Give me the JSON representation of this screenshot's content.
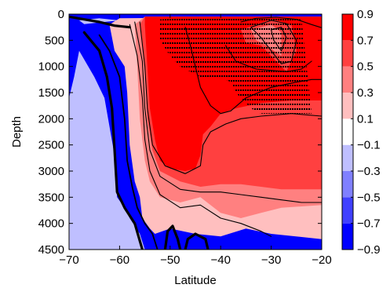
{
  "chart_data": {
    "type": "heatmap",
    "title": "",
    "xlabel": "Latitude",
    "ylabel": "Depth",
    "xlim": [
      -70,
      -20
    ],
    "ylim": [
      0,
      4500
    ],
    "y_inverted": true,
    "x_ticks": [
      -70,
      -60,
      -50,
      -40,
      -30,
      -20
    ],
    "x_tick_labels": [
      "−70",
      "−60",
      "−50",
      "−40",
      "−30",
      "−20"
    ],
    "y_ticks": [
      0,
      500,
      1000,
      1500,
      2000,
      2500,
      3000,
      3500,
      4000,
      4500
    ],
    "y_tick_labels": [
      "0",
      "500",
      "1000",
      "1500",
      "2000",
      "2500",
      "3000",
      "3500",
      "4000",
      "4500"
    ],
    "colorbar": {
      "levels": [
        -0.9,
        -0.7,
        -0.5,
        -0.3,
        -0.1,
        0.1,
        0.3,
        0.5,
        0.7,
        0.9
      ],
      "tick_labels": [
        "−0.9",
        "−0.7",
        "−0.5",
        "−0.3",
        "−0.1",
        "0.1",
        "0.3",
        "0.5",
        "0.7",
        "0.9"
      ],
      "colors": [
        "#0000ff",
        "#4040ff",
        "#8080ff",
        "#bfbfff",
        "#ffffff",
        "#ffbfbf",
        "#ff8080",
        "#ff4040",
        "#ff0000"
      ]
    },
    "regions": [
      {
        "level": 0,
        "points": [
          [
            -70,
            0
          ],
          [
            -70,
            4500
          ],
          [
            -20,
            4500
          ],
          [
            -20,
            0
          ]
        ]
      },
      {
        "level": 3,
        "points": [
          [
            -68,
            700
          ],
          [
            -65,
            1200
          ],
          [
            -63,
            1600
          ],
          [
            -61,
            2700
          ],
          [
            -60.5,
            3500
          ],
          [
            -59,
            3700
          ],
          [
            -58,
            3900
          ],
          [
            -56,
            4200
          ],
          [
            -55,
            4500
          ],
          [
            -70,
            4500
          ],
          [
            -70,
            1600
          ],
          [
            -69,
            1200
          ]
        ]
      },
      {
        "level": 3,
        "points": [
          [
            -68,
            120
          ],
          [
            -64,
            80
          ],
          [
            -60,
            120
          ],
          [
            -67,
            190
          ]
        ]
      },
      {
        "level": 5,
        "points": [
          [
            -61,
            700
          ],
          [
            -59,
            1000
          ],
          [
            -58.5,
            1500
          ],
          [
            -58,
            2500
          ],
          [
            -57,
            3200
          ],
          [
            -56,
            3500
          ],
          [
            -55.5,
            3900
          ],
          [
            -54,
            4100
          ],
          [
            -53,
            4200
          ],
          [
            -50,
            4100
          ],
          [
            -45,
            4200
          ],
          [
            -40,
            4250
          ],
          [
            -35,
            4100
          ],
          [
            -30,
            4200
          ],
          [
            -20,
            4300
          ],
          [
            -20,
            50
          ],
          [
            -60,
            80
          ],
          [
            -62,
            200
          ]
        ]
      },
      {
        "level": 6,
        "points": [
          [
            -57,
            200
          ],
          [
            -56.5,
            1000
          ],
          [
            -56,
            2000
          ],
          [
            -55,
            2800
          ],
          [
            -54,
            3200
          ],
          [
            -52,
            3500
          ],
          [
            -48,
            3600
          ],
          [
            -44,
            3500
          ],
          [
            -40,
            3800
          ],
          [
            -36,
            3900
          ],
          [
            -32,
            3800
          ],
          [
            -28,
            3700
          ],
          [
            -20,
            3650
          ],
          [
            -20,
            50
          ],
          [
            -55,
            50
          ]
        ]
      },
      {
        "level": 7,
        "points": [
          [
            -56,
            200
          ],
          [
            -55,
            1000
          ],
          [
            -54.5,
            2000
          ],
          [
            -53.5,
            2600
          ],
          [
            -52,
            3000
          ],
          [
            -48,
            3200
          ],
          [
            -44,
            3300
          ],
          [
            -40,
            3250
          ],
          [
            -36,
            3250
          ],
          [
            -32,
            3300
          ],
          [
            -28,
            3350
          ],
          [
            -20,
            3350
          ],
          [
            -20,
            50
          ],
          [
            -55,
            50
          ]
        ]
      },
      {
        "level": 8,
        "points": [
          [
            -55,
            200
          ],
          [
            -54.5,
            1000
          ],
          [
            -54,
            1800
          ],
          [
            -53,
            2400
          ],
          [
            -52,
            2800
          ],
          [
            -50,
            2950
          ],
          [
            -47,
            3000
          ],
          [
            -45,
            2950
          ],
          [
            -44,
            2700
          ],
          [
            -43.5,
            2300
          ],
          [
            -42,
            2150
          ],
          [
            -40,
            1900
          ],
          [
            -37,
            1800
          ],
          [
            -32,
            1700
          ],
          [
            -26,
            1650
          ],
          [
            -20,
            1650
          ],
          [
            -20,
            50
          ],
          [
            -55,
            50
          ]
        ]
      },
      {
        "level": 7,
        "points": [
          [
            -36,
            300
          ],
          [
            -30,
            100
          ],
          [
            -26,
            200
          ],
          [
            -25,
            700
          ],
          [
            -27,
            1100
          ],
          [
            -29,
            900
          ],
          [
            -32,
            600
          ],
          [
            -35,
            550
          ]
        ]
      },
      {
        "level": 6,
        "points": [
          [
            -34,
            300
          ],
          [
            -30,
            200
          ],
          [
            -28,
            350
          ],
          [
            -28,
            800
          ],
          [
            -31,
            600
          ],
          [
            -33,
            500
          ]
        ]
      }
    ],
    "contours": [
      {
        "width": 3.2,
        "points": [
          [
            -70,
            50
          ],
          [
            -67,
            100
          ],
          [
            -64,
            150
          ],
          [
            -61,
            220
          ],
          [
            -58,
            250
          ]
        ]
      },
      {
        "width": 3.2,
        "points": [
          [
            -67,
            350
          ],
          [
            -64,
            700
          ],
          [
            -62.5,
            1200
          ],
          [
            -61.5,
            1800
          ],
          [
            -61,
            2600
          ],
          [
            -60.5,
            3400
          ],
          [
            -59,
            3700
          ],
          [
            -57,
            4000
          ],
          [
            -55.5,
            4500
          ]
        ]
      },
      {
        "width": 3.2,
        "points": [
          [
            -51,
            4500
          ],
          [
            -50.5,
            4150
          ],
          [
            -49.5,
            4050
          ],
          [
            -48.5,
            4300
          ],
          [
            -48,
            4500
          ]
        ]
      },
      {
        "width": 3.2,
        "points": [
          [
            -47,
            4500
          ],
          [
            -46.5,
            4300
          ],
          [
            -45,
            4200
          ],
          [
            -43,
            4300
          ],
          [
            -42.5,
            4500
          ]
        ]
      },
      {
        "width": 1.8,
        "points": [
          [
            -64,
            400
          ],
          [
            -62,
            700
          ],
          [
            -60,
            1200
          ],
          [
            -59,
            2000
          ],
          [
            -58.5,
            2800
          ],
          [
            -57.5,
            3300
          ],
          [
            -56.5,
            3700
          ],
          [
            -55,
            4000
          ],
          [
            -53.5,
            4200
          ],
          [
            -52.5,
            4500
          ]
        ]
      },
      {
        "width": 1.1,
        "points": [
          [
            -58,
            200
          ],
          [
            -56.5,
            800
          ],
          [
            -55.5,
            1600
          ],
          [
            -55,
            2400
          ],
          [
            -54,
            3000
          ],
          [
            -52,
            3450
          ],
          [
            -48,
            3700
          ],
          [
            -44,
            3650
          ],
          [
            -40,
            3900
          ],
          [
            -36,
            4000
          ],
          [
            -32,
            4150
          ],
          [
            -30,
            4250
          ]
        ]
      },
      {
        "width": 1.1,
        "points": [
          [
            -57,
            150
          ],
          [
            -55.5,
            900
          ],
          [
            -55,
            1800
          ],
          [
            -54,
            2600
          ],
          [
            -52,
            3100
          ],
          [
            -48,
            3350
          ],
          [
            -44,
            3400
          ],
          [
            -40,
            3400
          ],
          [
            -36,
            3450
          ],
          [
            -32,
            3500
          ],
          [
            -28,
            3550
          ],
          [
            -24,
            3600
          ],
          [
            -20,
            3600
          ]
        ]
      },
      {
        "width": 1.1,
        "points": [
          [
            -56,
            150
          ],
          [
            -55,
            1000
          ],
          [
            -54.5,
            1800
          ],
          [
            -53.5,
            2500
          ],
          [
            -51,
            2900
          ],
          [
            -47,
            3050
          ],
          [
            -44,
            2900
          ],
          [
            -43.5,
            2500
          ],
          [
            -42,
            2250
          ],
          [
            -39,
            2100
          ],
          [
            -36,
            2000
          ],
          [
            -32,
            1950
          ],
          [
            -26,
            1900
          ],
          [
            -20,
            1950
          ]
        ]
      },
      {
        "width": 1.1,
        "points": [
          [
            -47,
            250
          ],
          [
            -46,
            600
          ],
          [
            -45,
            1000
          ],
          [
            -44,
            1400
          ],
          [
            -42,
            1750
          ],
          [
            -40,
            1900
          ],
          [
            -38,
            1850
          ],
          [
            -35,
            1600
          ],
          [
            -30,
            1400
          ],
          [
            -25,
            1300
          ],
          [
            -22,
            1250
          ],
          [
            -20,
            1250
          ]
        ]
      },
      {
        "width": 1.1,
        "points": [
          [
            -36,
            150
          ],
          [
            -33,
            80
          ],
          [
            -29,
            60
          ],
          [
            -25,
            100
          ],
          [
            -22,
            200
          ],
          [
            -20,
            260
          ]
        ]
      },
      {
        "width": 1.1,
        "points": [
          [
            -39,
            600
          ],
          [
            -37,
            900
          ],
          [
            -33,
            1050
          ],
          [
            -27,
            1100
          ],
          [
            -24,
            1050
          ],
          [
            -22,
            900
          ]
        ]
      },
      {
        "width": 1.1,
        "points": [
          [
            -34,
            250
          ],
          [
            -30,
            120
          ],
          [
            -27,
            180
          ],
          [
            -25,
            500
          ],
          [
            -26,
            900
          ],
          [
            -28,
            950
          ],
          [
            -30,
            700
          ],
          [
            -32,
            450
          ],
          [
            -34,
            250
          ]
        ]
      },
      {
        "width": 1.1,
        "points": [
          [
            -30,
            300
          ],
          [
            -28,
            250
          ],
          [
            -27,
            450
          ],
          [
            -28,
            700
          ],
          [
            -29.5,
            500
          ],
          [
            -30,
            300
          ]
        ]
      }
    ],
    "stipple": [
      {
        "points": [
          [
            -52,
            100
          ],
          [
            -40,
            50
          ],
          [
            -30,
            50
          ],
          [
            -24,
            100
          ],
          [
            -23,
            1000
          ],
          [
            -22,
            1900
          ],
          [
            -32,
            1900
          ],
          [
            -34,
            1800
          ],
          [
            -35,
            1700
          ],
          [
            -37,
            1500
          ],
          [
            -38,
            1300
          ],
          [
            -40,
            1200
          ],
          [
            -44,
            1200
          ],
          [
            -48,
            1000
          ],
          [
            -50,
            800
          ],
          [
            -52,
            500
          ]
        ]
      }
    ]
  }
}
